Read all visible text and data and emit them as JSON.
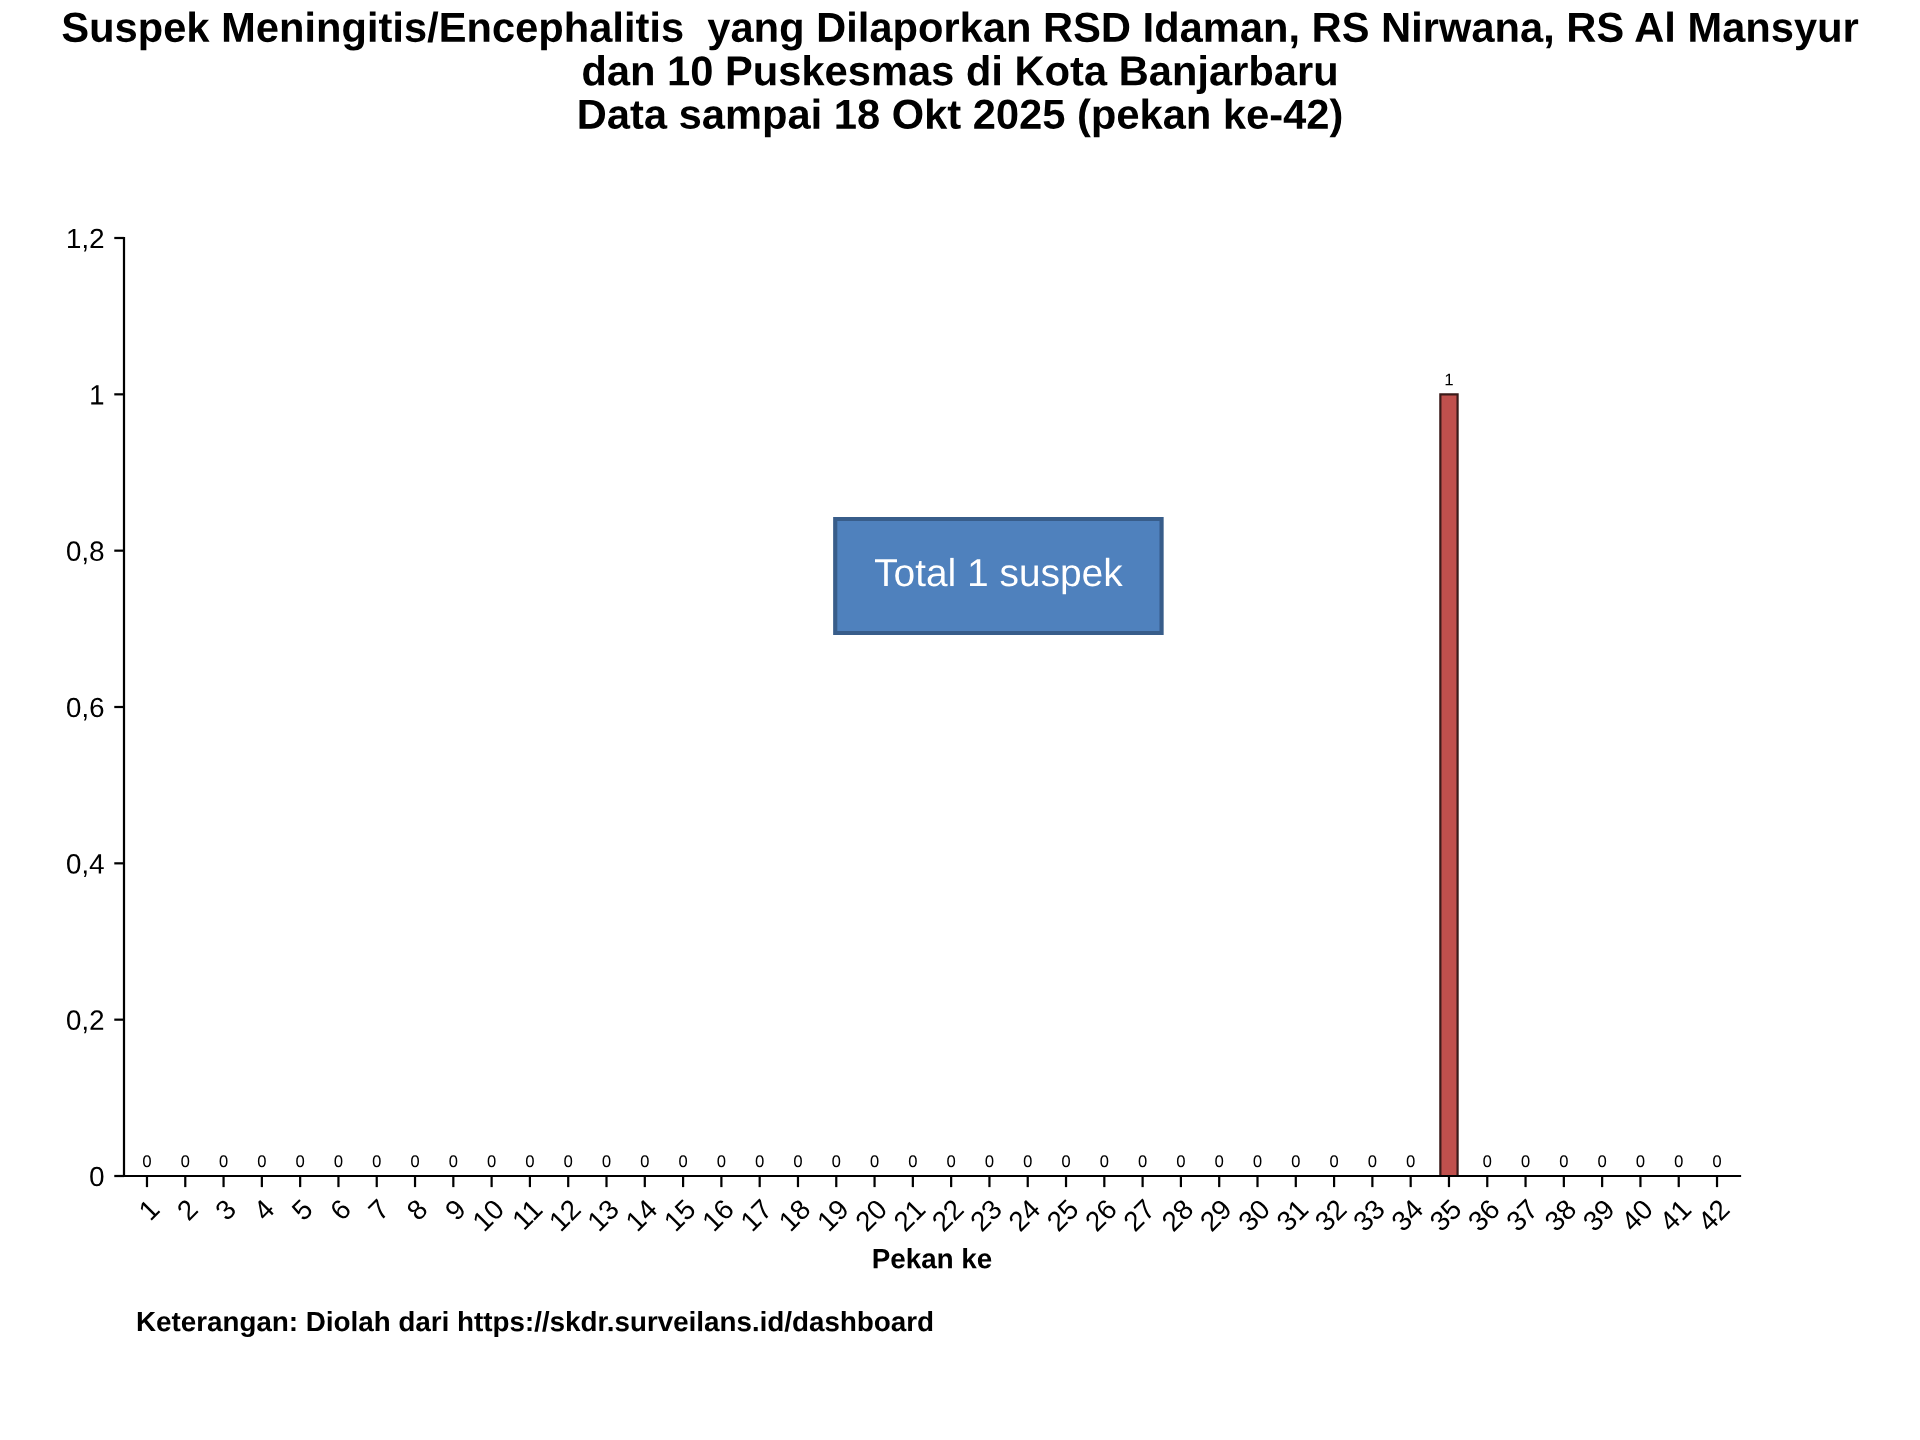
{
  "chart_data": {
    "type": "bar",
    "title": "Suspek Meningitis/Encephalitis  yang Dilaporkan RSD Idaman, RS Nirwana, RS Al Mansyur\ndan 10 Puskesmas di Kota Banjarbaru\nData sampai 18 Okt 2025 (pekan ke-42)",
    "xlabel": "Pekan ke",
    "categories": [
      "1",
      "2",
      "3",
      "4",
      "5",
      "6",
      "7",
      "8",
      "9",
      "10",
      "11",
      "12",
      "13",
      "14",
      "15",
      "16",
      "17",
      "18",
      "19",
      "20",
      "21",
      "22",
      "23",
      "24",
      "25",
      "26",
      "27",
      "28",
      "29",
      "30",
      "31",
      "32",
      "33",
      "34",
      "35",
      "36",
      "37",
      "38",
      "39",
      "40",
      "41",
      "42"
    ],
    "values": [
      0,
      0,
      0,
      0,
      0,
      0,
      0,
      0,
      0,
      0,
      0,
      0,
      0,
      0,
      0,
      0,
      0,
      0,
      0,
      0,
      0,
      0,
      0,
      0,
      0,
      0,
      0,
      0,
      0,
      0,
      0,
      0,
      0,
      0,
      1,
      0,
      0,
      0,
      0,
      0,
      0,
      0
    ],
    "color": "#c0504d",
    "data_labels": true,
    "ylim": [
      0,
      1.2
    ],
    "yticks": [
      0,
      {
        "value": 0.2,
        "label": "0,2"
      },
      {
        "value": 0.4,
        "label": "0,4"
      },
      {
        "value": 0.6,
        "label": "0,6"
      },
      {
        "value": 0.8,
        "label": "0,8"
      },
      1,
      {
        "value": 1.2,
        "label": "1,2"
      }
    ],
    "grid": false,
    "annotations": [
      "Total 1 suspek",
      "Keterangan: Diolah dari https://skdr.surveilans.id/dashboard"
    ]
  }
}
